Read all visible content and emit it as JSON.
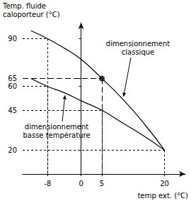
{
  "chart_data": {
    "type": "line",
    "x": [
      -12,
      -8,
      -4,
      0,
      5,
      10,
      15,
      20
    ],
    "series": [
      {
        "name": "dimensionnement classique",
        "color": "#000000",
        "values": [
          95,
          90,
          84,
          77,
          65,
          52,
          37,
          20
        ]
      },
      {
        "name": "dimensionnement basse température",
        "color": "#000000",
        "values": [
          65,
          60,
          56,
          51,
          45,
          37,
          29,
          20
        ]
      }
    ],
    "xlabel": "temp ext. (°C)",
    "ylabel": "Temp. fluide\ncaloporteur (°C)",
    "xlim": [
      -14,
      25
    ],
    "ylim": [
      5,
      100
    ],
    "xticks": [
      -8,
      0,
      5,
      20
    ],
    "yticks": [
      20,
      45,
      60,
      65,
      90
    ],
    "grid": false,
    "reference_points": [
      {
        "x": -8,
        "y": 90
      },
      {
        "x": -8,
        "y": 60
      },
      {
        "x": 5,
        "y": 45
      },
      {
        "x": 20,
        "y": 20
      }
    ],
    "highlight": {
      "x": 5,
      "y": 65
    }
  }
}
